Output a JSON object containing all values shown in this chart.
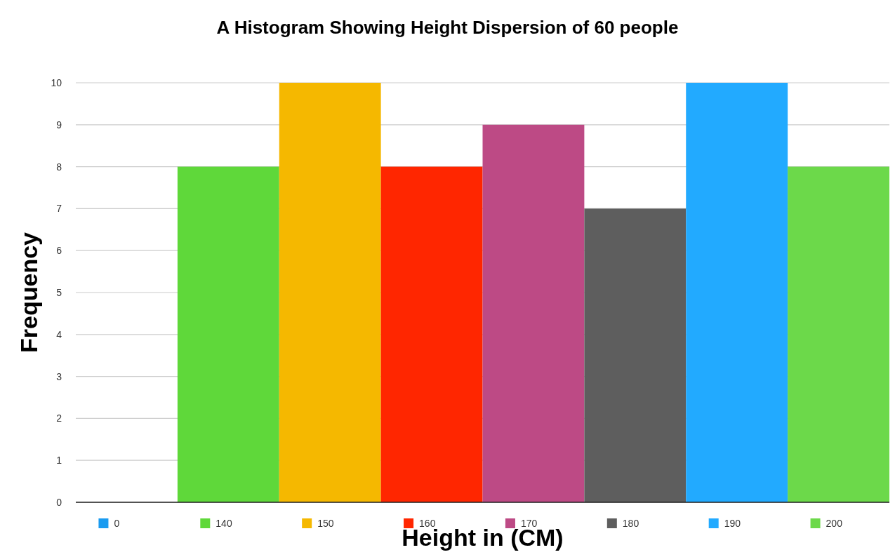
{
  "chart_data": {
    "type": "bar",
    "title": "A Histogram Showing Height Dispersion of 60 people",
    "xlabel": "Height in (CM)",
    "ylabel": "Frequency",
    "categories": [
      null
    ],
    "series": [
      {
        "name": "0",
        "color": "#1a9bf0",
        "values": [
          0
        ]
      },
      {
        "name": "140",
        "color": "#5fd83a",
        "values": [
          8
        ]
      },
      {
        "name": "150",
        "color": "#f5b800",
        "values": [
          10
        ]
      },
      {
        "name": "160",
        "color": "#ff2600",
        "values": [
          8
        ]
      },
      {
        "name": "170",
        "color": "#bd4a85",
        "values": [
          9
        ]
      },
      {
        "name": "180",
        "color": "#5e5e5e",
        "values": [
          7
        ]
      },
      {
        "name": "190",
        "color": "#22aaff",
        "values": [
          10
        ]
      },
      {
        "name": "200",
        "color": "#6cd94a",
        "values": [
          8
        ]
      }
    ],
    "ylim": [
      0,
      10
    ],
    "yticks": [
      0,
      1,
      2,
      3,
      4,
      5,
      6,
      7,
      8,
      9,
      10
    ],
    "grid": "y",
    "legend": "bottom"
  }
}
